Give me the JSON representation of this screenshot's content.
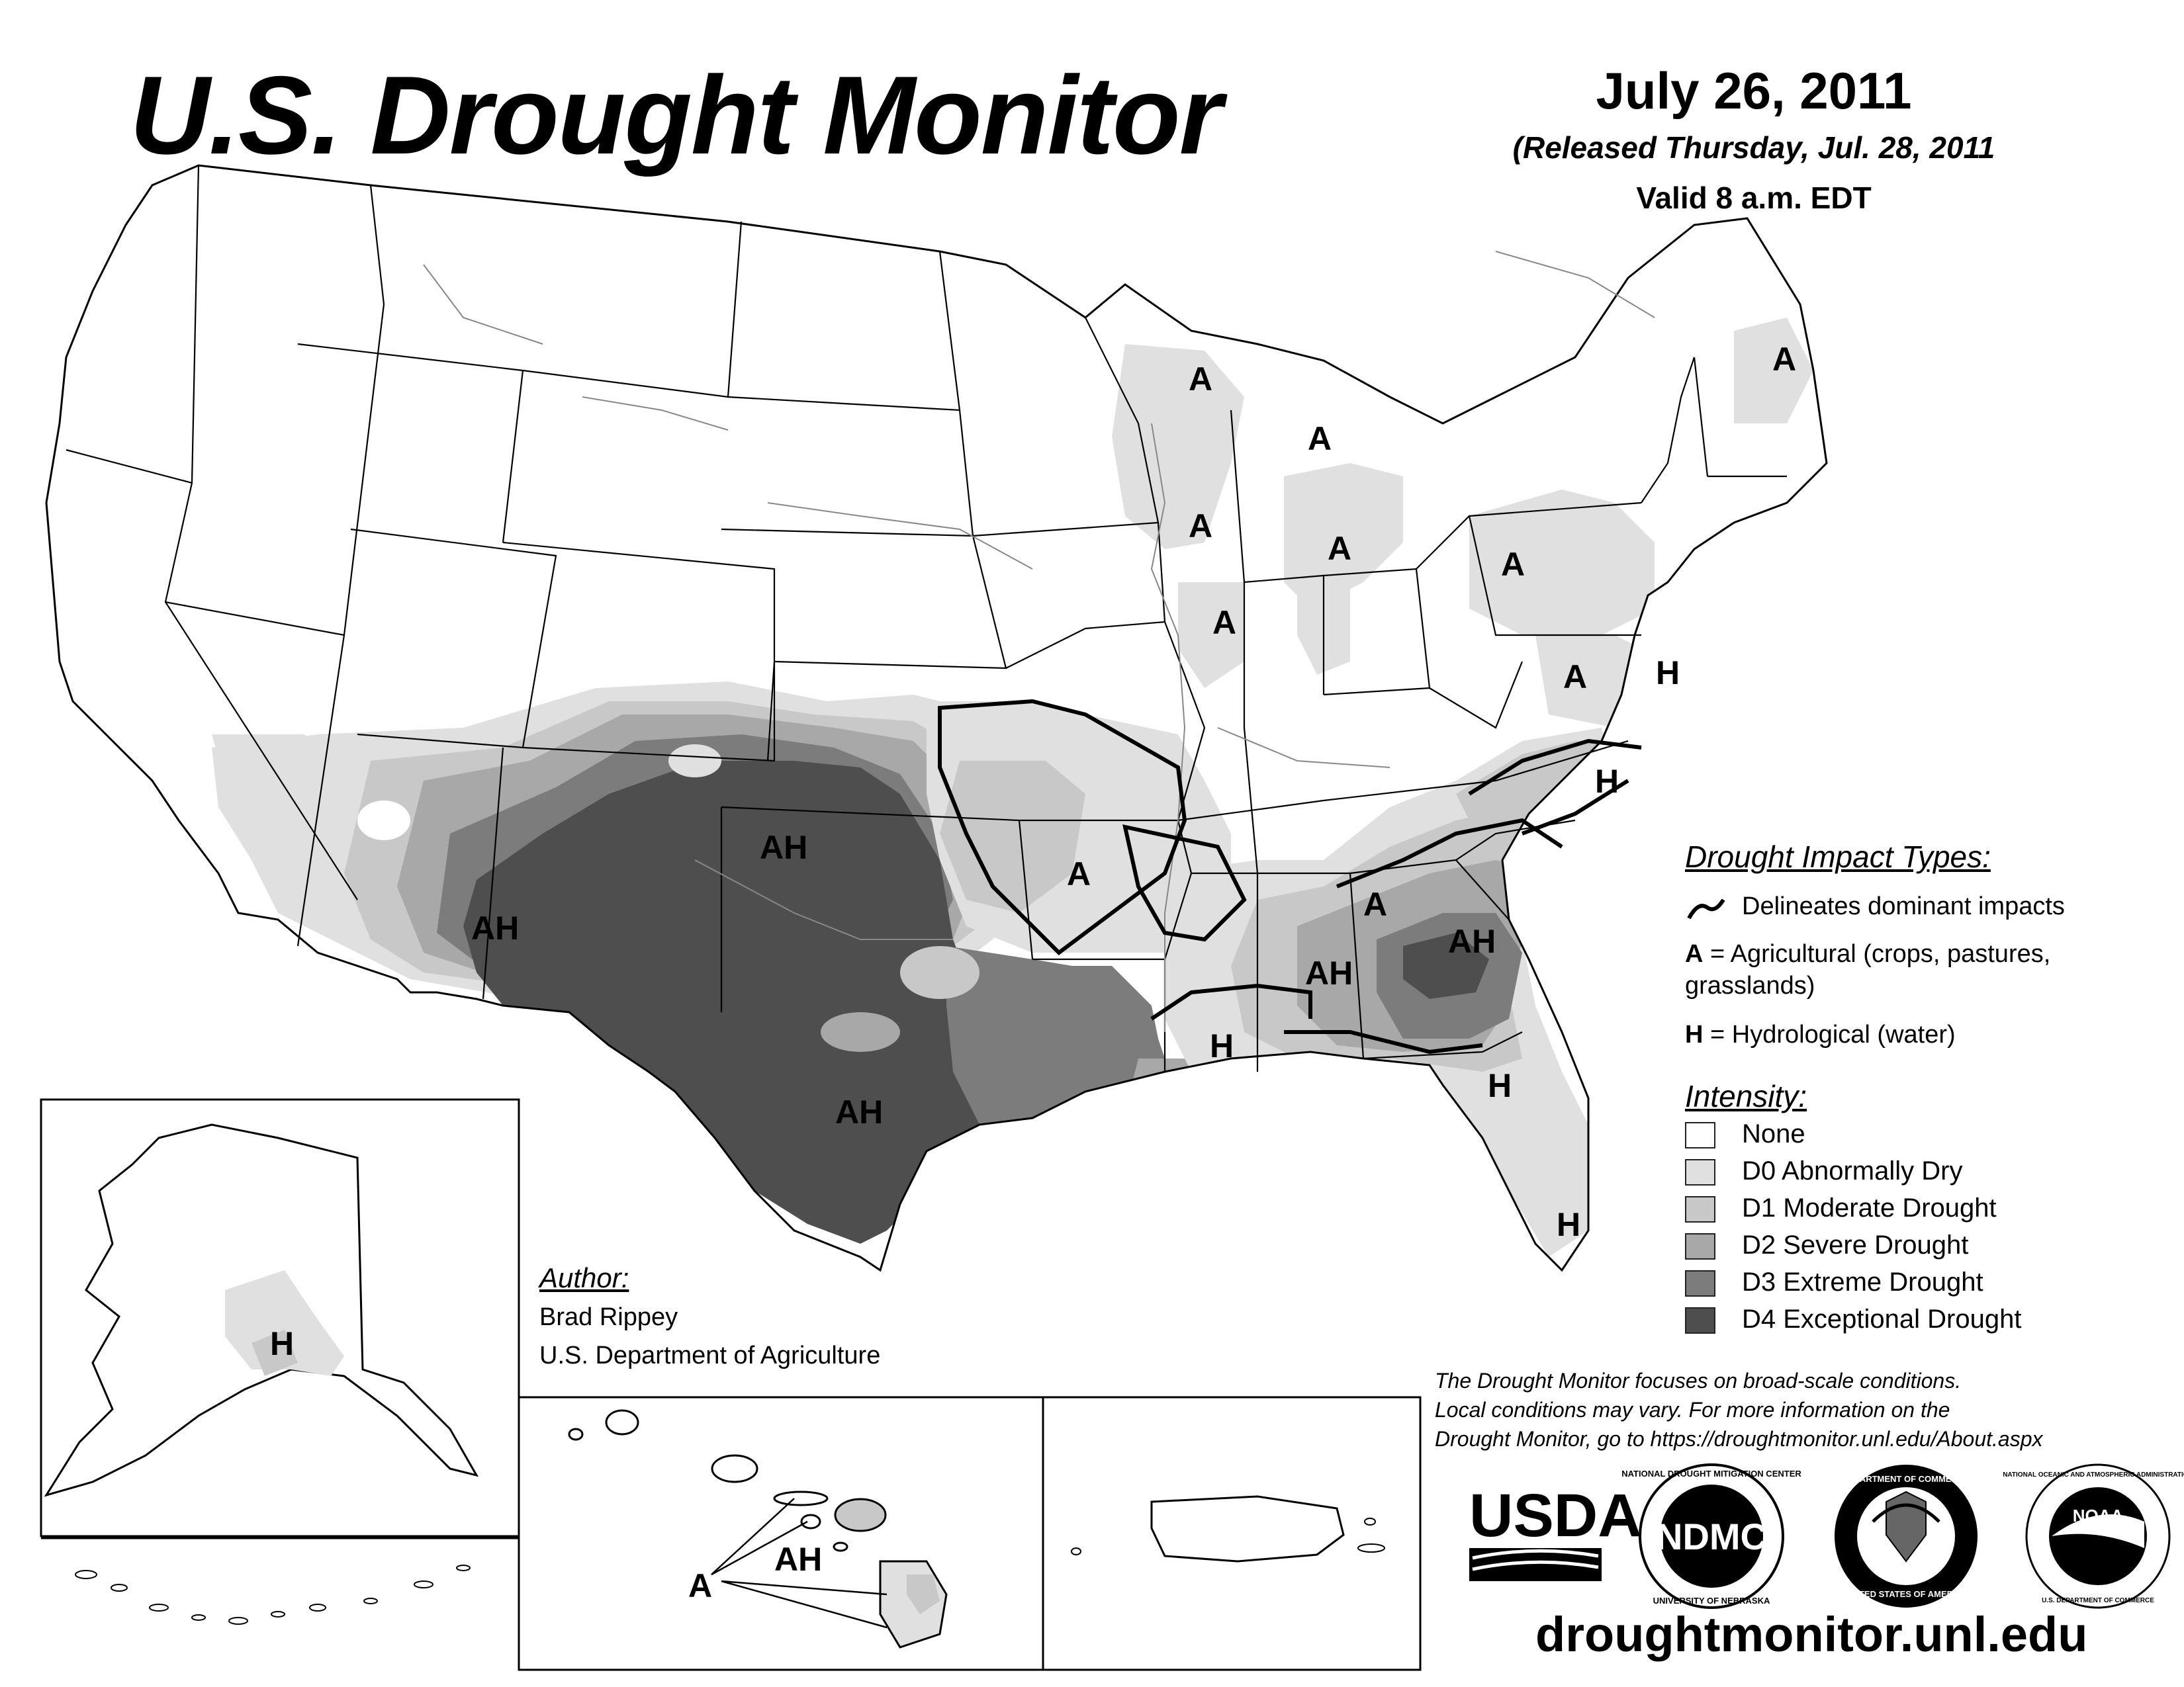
{
  "header": {
    "title": "U.S. Drought Monitor",
    "date": "July 26, 2011",
    "released": "(Released Thursday, Jul. 28, 2011",
    "valid": "Valid 8 a.m. EDT"
  },
  "impact_legend": {
    "title": "Drought Impact Types:",
    "delineates": "Delineates dominant impacts",
    "agricultural_key": "A",
    "agricultural_text": " = Agricultural (crops, pastures,",
    "agricultural_text2": "grasslands)",
    "hydrological_key": "H",
    "hydrological_text": " = Hydrological (water)"
  },
  "intensity_legend": {
    "title": "Intensity:",
    "items": [
      {
        "label": "None",
        "color": "#ffffff"
      },
      {
        "label": "D0 Abnormally Dry",
        "color": "#e0e0e0"
      },
      {
        "label": "D1 Moderate Drought",
        "color": "#c8c8c8"
      },
      {
        "label": "D2 Severe Drought",
        "color": "#a8a8a8"
      },
      {
        "label": "D3 Extreme Drought",
        "color": "#7c7c7c"
      },
      {
        "label": "D4 Exceptional Drought",
        "color": "#4e4e4e"
      }
    ]
  },
  "author": {
    "title": "Author:",
    "name": "Brad Rippey",
    "org": "U.S. Department of Agriculture"
  },
  "disclaimer": {
    "line1": "The Drought Monitor focuses on broad-scale conditions.",
    "line2": "Local conditions may vary. For more information on the",
    "line3": "Drought Monitor, go to https://droughtmonitor.unl.edu/About.aspx"
  },
  "website": "droughtmonitor.unl.edu",
  "map_labels": {
    "ah": "AH",
    "a": "A",
    "h": "H"
  },
  "logos": {
    "usda": "USDA",
    "ndmc": "NDMC",
    "ndmc_ring_top": "NATIONAL DROUGHT MITIGATION CENTER",
    "ndmc_ring_bottom": "UNIVERSITY OF NEBRASKA",
    "doc_ring_top": "DEPARTMENT OF COMMERCE",
    "doc_ring_bottom": "UNITED STATES OF AMERICA",
    "noaa": "NOAA",
    "noaa_ring_top": "NATIONAL OCEANIC AND ATMOSPHERIC ADMINISTRATION",
    "noaa_ring_bottom": "U.S. DEPARTMENT OF COMMERCE"
  }
}
